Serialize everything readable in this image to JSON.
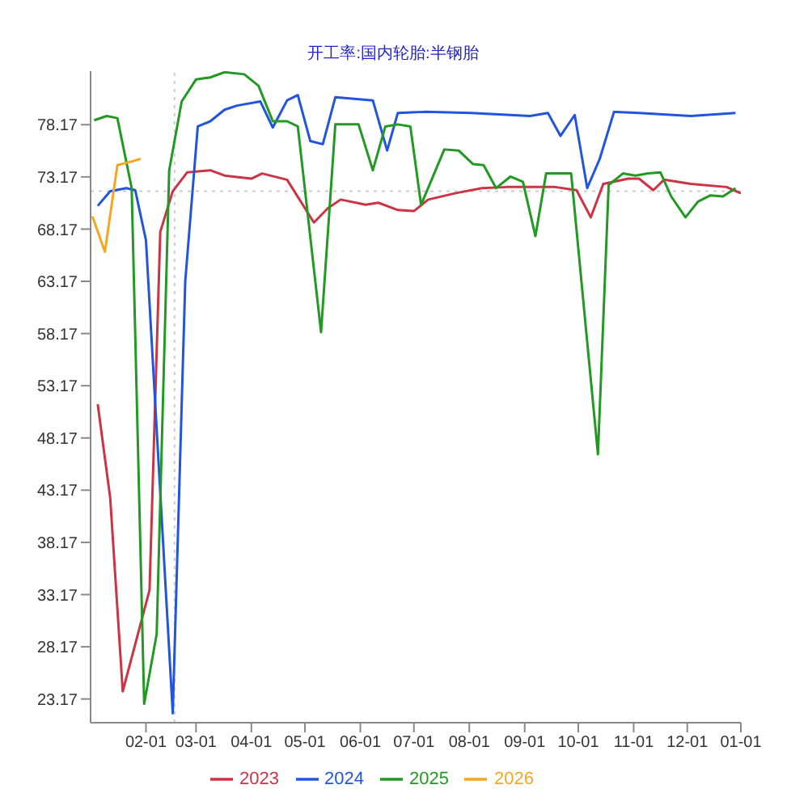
{
  "chart_data": {
    "type": "line",
    "title": "开工率:国内轮胎:半钢胎",
    "ylim": [
      20.9,
      83.3
    ],
    "yticks": [
      23.17,
      28.17,
      33.17,
      38.17,
      43.17,
      48.17,
      53.17,
      58.17,
      63.17,
      68.17,
      73.17,
      78.17
    ],
    "xlim": [
      "--01-01",
      "--12-31"
    ],
    "xticks": [
      {
        "value": "--02-01",
        "label": "02-01"
      },
      {
        "value": "--03-01",
        "label": "03-01"
      },
      {
        "value": "--04-01",
        "label": "04-01"
      },
      {
        "value": "--05-01",
        "label": "05-01"
      },
      {
        "value": "--06-01",
        "label": "06-01"
      },
      {
        "value": "--07-01",
        "label": "07-01"
      },
      {
        "value": "--08-01",
        "label": "08-01"
      },
      {
        "value": "--09-01",
        "label": "09-01"
      },
      {
        "value": "--10-01",
        "label": "10-01"
      },
      {
        "value": "--11-01",
        "label": "11-01"
      },
      {
        "value": "--12-01",
        "label": "12-01"
      },
      {
        "value": "--12-31",
        "label": "01-01"
      }
    ],
    "grid": false,
    "legend": "bottom",
    "marker": "none",
    "line_style": "solid",
    "ref_lines": [
      {
        "axis": "y",
        "value": 71.8,
        "color": "#cccccc",
        "line_style": "dotted"
      },
      {
        "axis": "x",
        "value": "--02-17",
        "color": "#cccccc",
        "line_style": "dotted"
      }
    ],
    "series": [
      {
        "name": "2023",
        "color": "#cc3344",
        "x": [
          "--01-05",
          "--01-12",
          "--01-19",
          "--02-03",
          "--02-09",
          "--02-16",
          "--02-24",
          "--03-09",
          "--03-17",
          "--04-01",
          "--04-07",
          "--04-21",
          "--05-06",
          "--05-14",
          "--05-21",
          "--06-04",
          "--06-11",
          "--06-22",
          "--07-01",
          "--07-09",
          "--07-24",
          "--08-08",
          "--08-22",
          "--09-18",
          "--09-30",
          "--10-08",
          "--10-15",
          "--10-29",
          "--11-04",
          "--11-12",
          "--11-18",
          "--12-03",
          "--12-23",
          "--12-31"
        ],
        "values": [
          51.4,
          42.4,
          23.9,
          33.6,
          67.9,
          71.8,
          73.6,
          73.8,
          73.3,
          73.0,
          73.5,
          72.9,
          68.8,
          70.2,
          71.0,
          70.5,
          70.7,
          70.0,
          69.9,
          71.0,
          71.6,
          72.1,
          72.2,
          72.2,
          71.9,
          69.3,
          72.5,
          73.0,
          73.0,
          71.9,
          72.9,
          72.5,
          72.2,
          71.6
        ]
      },
      {
        "name": "2024",
        "color": "#2255dd",
        "x": [
          "--01-05",
          "--01-12",
          "--01-21",
          "--01-26",
          "--02-01",
          "--02-16",
          "--02-23",
          "--03-02",
          "--03-09",
          "--03-17",
          "--03-24",
          "--04-06",
          "--04-13",
          "--04-21",
          "--04-27",
          "--05-04",
          "--05-11",
          "--05-18",
          "--06-08",
          "--06-16",
          "--06-22",
          "--07-07",
          "--08-02",
          "--09-04",
          "--09-14",
          "--09-21",
          "--09-29",
          "--10-06",
          "--10-13",
          "--10-21",
          "--11-04",
          "--12-03",
          "--12-28"
        ],
        "values": [
          70.4,
          71.8,
          72.1,
          71.9,
          67.1,
          21.8,
          63.2,
          78.0,
          78.5,
          79.6,
          80.0,
          80.4,
          77.9,
          80.5,
          81.0,
          76.6,
          76.3,
          80.8,
          80.5,
          75.7,
          79.3,
          79.4,
          79.3,
          79.0,
          79.3,
          77.1,
          79.1,
          72.1,
          74.9,
          79.4,
          79.3,
          79.0,
          79.3
        ]
      },
      {
        "name": "2025",
        "color": "#229922",
        "x": [
          "--01-03",
          "--01-10",
          "--01-16",
          "--01-24",
          "--01-31",
          "--02-07",
          "--02-14",
          "--02-21",
          "--03-01",
          "--03-09",
          "--03-17",
          "--03-28",
          "--04-05",
          "--04-13",
          "--04-21",
          "--04-27",
          "--05-10",
          "--05-18",
          "--05-31",
          "--06-08",
          "--06-15",
          "--06-22",
          "--06-29",
          "--07-05",
          "--07-18",
          "--07-26",
          "--08-03",
          "--08-09",
          "--08-16",
          "--08-24",
          "--08-31",
          "--09-07",
          "--09-13",
          "--09-27",
          "--10-12",
          "--10-18",
          "--10-26",
          "--11-02",
          "--11-09",
          "--11-16",
          "--11-22",
          "--11-30",
          "--12-07",
          "--12-14",
          "--12-21",
          "--12-28"
        ],
        "values": [
          78.6,
          79.0,
          78.8,
          72.1,
          22.7,
          29.4,
          73.8,
          80.4,
          82.5,
          82.7,
          83.2,
          83.0,
          81.9,
          78.5,
          78.5,
          78.0,
          58.3,
          78.2,
          78.2,
          73.8,
          78.0,
          78.2,
          78.0,
          70.5,
          75.8,
          75.7,
          74.4,
          74.3,
          72.1,
          73.2,
          72.7,
          67.5,
          73.5,
          73.5,
          46.6,
          72.4,
          73.5,
          73.3,
          73.5,
          73.6,
          71.3,
          69.3,
          70.8,
          71.4,
          71.3,
          72.1
        ]
      },
      {
        "name": "2026",
        "color": "#f5a623",
        "x": [
          "--01-02",
          "--01-09",
          "--01-16",
          "--01-23",
          "--01-29"
        ],
        "values": [
          69.4,
          66.0,
          74.3,
          74.6,
          74.9
        ]
      }
    ]
  }
}
